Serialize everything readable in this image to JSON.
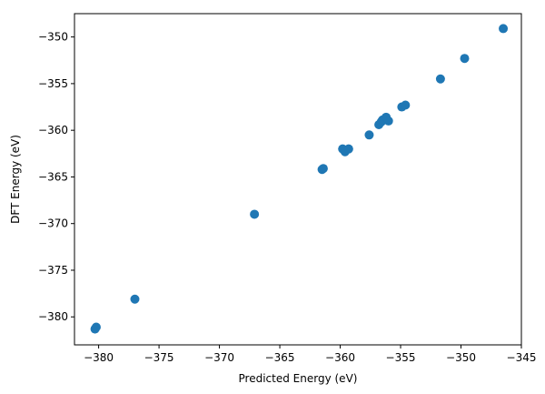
{
  "chart_data": {
    "type": "scatter",
    "title": "",
    "xlabel": "Predicted Energy (eV)",
    "ylabel": "DFT Energy (eV)",
    "xlim": [
      -382.0,
      -345.0
    ],
    "ylim": [
      -383.0,
      -347.5
    ],
    "xticks": [
      -380,
      -375,
      -370,
      -365,
      -360,
      -355,
      -350,
      -345
    ],
    "yticks": [
      -350,
      -355,
      -360,
      -365,
      -370,
      -375,
      -380
    ],
    "xtick_labels": [
      "−380",
      "−375",
      "−370",
      "−365",
      "−360",
      "−355",
      "−350",
      "−345"
    ],
    "ytick_labels": [
      "−350",
      "−355",
      "−360",
      "−365",
      "−370",
      "−375",
      "−380"
    ],
    "grid": false,
    "marker_color": "#1f77b4",
    "points": [
      {
        "x": -380.3,
        "y": -381.3
      },
      {
        "x": -380.2,
        "y": -381.1
      },
      {
        "x": -377.0,
        "y": -378.1
      },
      {
        "x": -367.1,
        "y": -369.0
      },
      {
        "x": -361.5,
        "y": -364.2
      },
      {
        "x": -361.4,
        "y": -364.1
      },
      {
        "x": -359.8,
        "y": -362.0
      },
      {
        "x": -359.6,
        "y": -362.3
      },
      {
        "x": -359.3,
        "y": -362.0
      },
      {
        "x": -357.6,
        "y": -360.5
      },
      {
        "x": -356.8,
        "y": -359.4
      },
      {
        "x": -356.6,
        "y": -359.1
      },
      {
        "x": -356.5,
        "y": -358.9
      },
      {
        "x": -356.2,
        "y": -358.6
      },
      {
        "x": -356.0,
        "y": -359.0
      },
      {
        "x": -354.9,
        "y": -357.5
      },
      {
        "x": -354.6,
        "y": -357.3
      },
      {
        "x": -351.7,
        "y": -354.5
      },
      {
        "x": -349.7,
        "y": -352.3
      },
      {
        "x": -346.5,
        "y": -349.1
      }
    ]
  }
}
